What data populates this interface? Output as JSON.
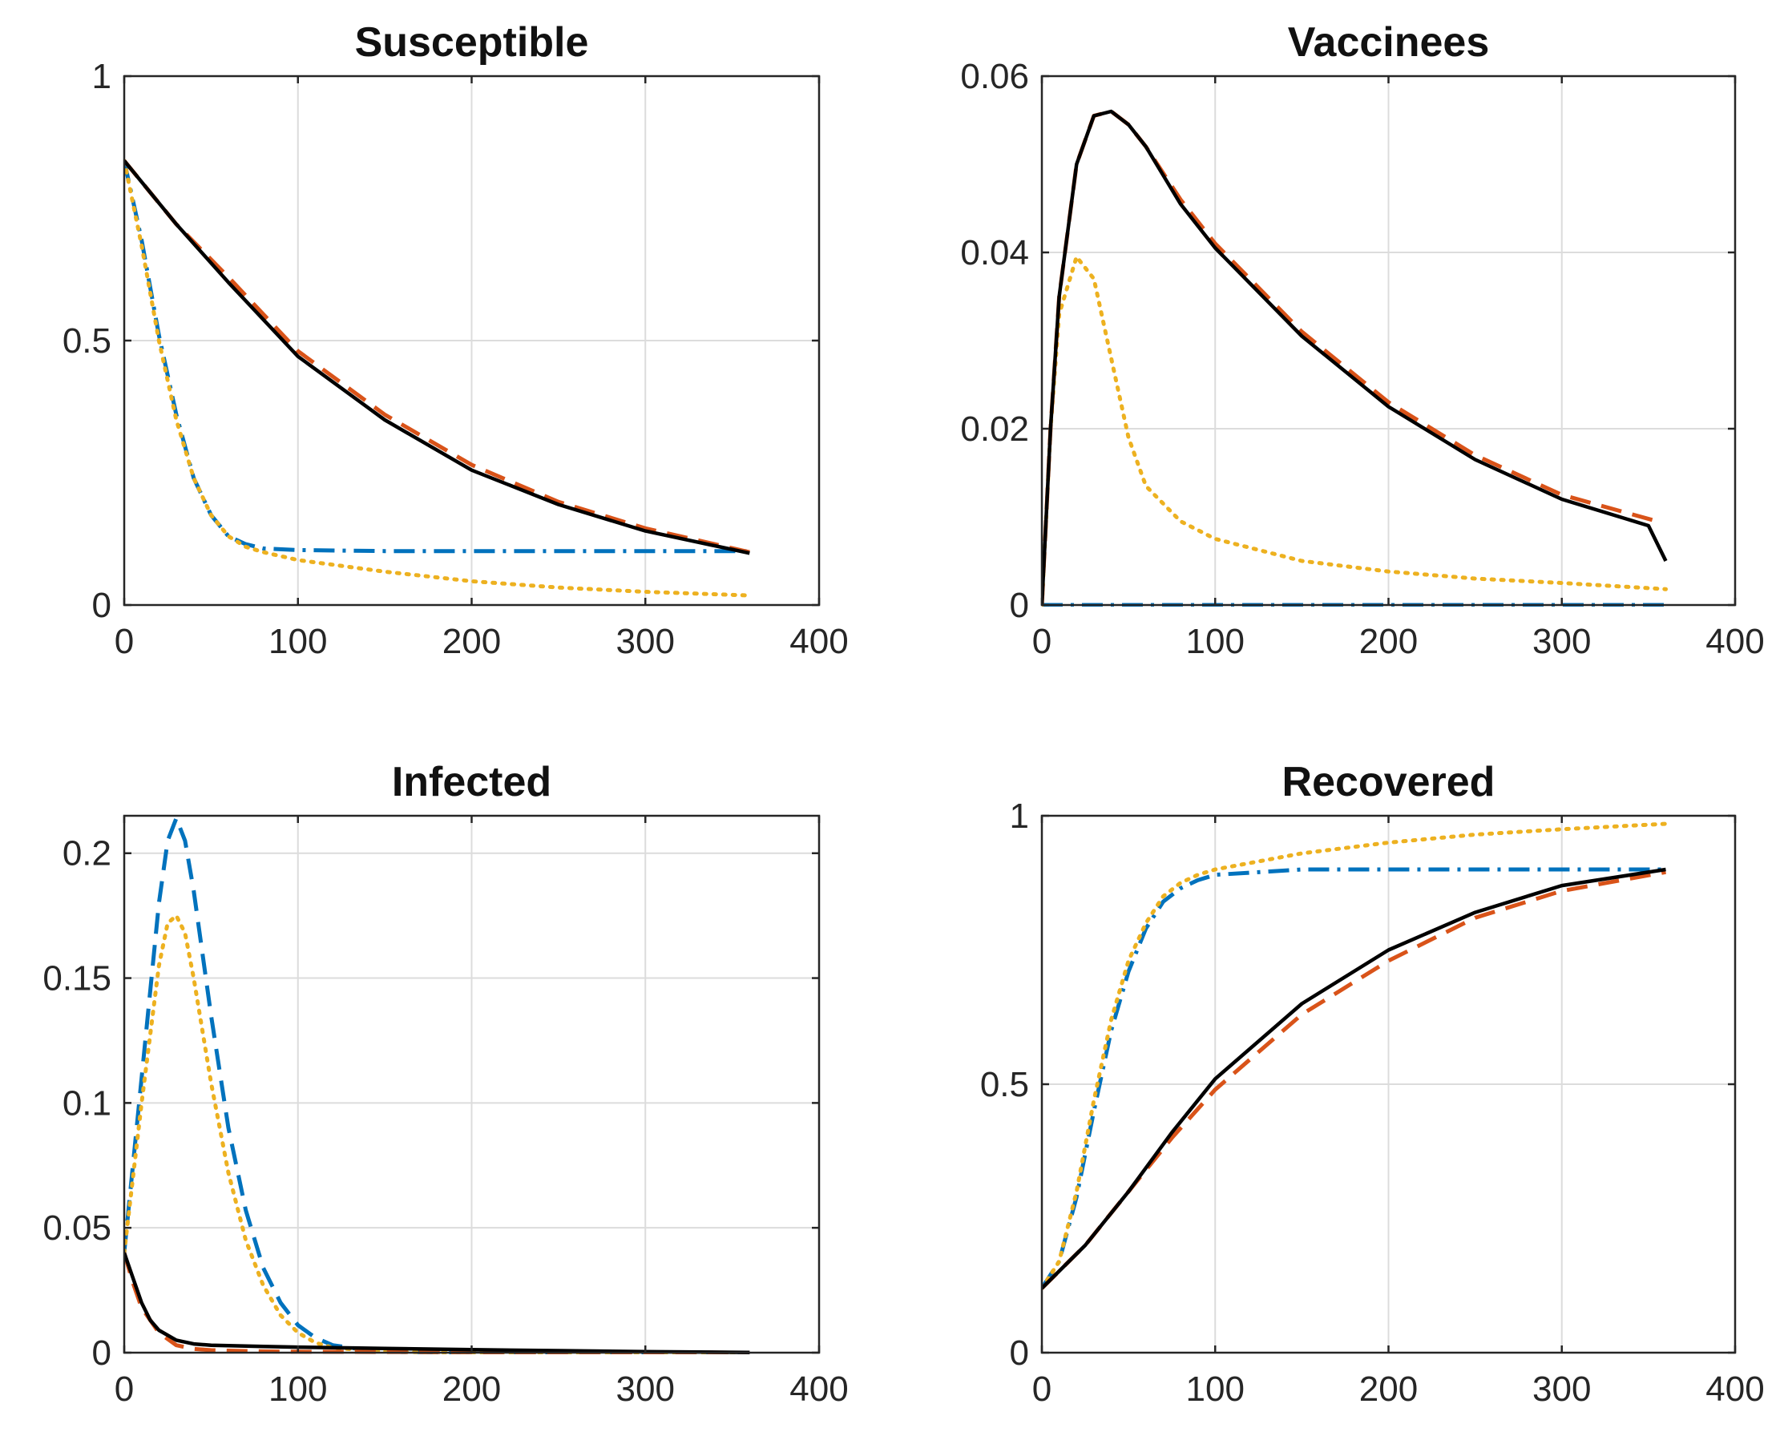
{
  "figure": {
    "colors": {
      "blue": "#0072BD",
      "red": "#D95319",
      "yellow": "#EDB120",
      "black": "#000000"
    }
  },
  "chart_data": [
    {
      "type": "line",
      "title": "Susceptible",
      "xlabel": "",
      "ylabel": "",
      "xlim": [
        0,
        400
      ],
      "ylim": [
        0,
        1
      ],
      "xticks": [
        0,
        100,
        200,
        300,
        400
      ],
      "yticks": [
        0,
        0.5,
        1
      ],
      "grid": true,
      "series": [
        {
          "name": "blue-dashdot",
          "color": "#0072BD",
          "style": "dashdot",
          "x": [
            0,
            10,
            20,
            30,
            40,
            50,
            60,
            70,
            80,
            100,
            150,
            200,
            250,
            300,
            360
          ],
          "y": [
            0.84,
            0.69,
            0.51,
            0.36,
            0.24,
            0.17,
            0.13,
            0.115,
            0.107,
            0.104,
            0.102,
            0.102,
            0.102,
            0.102,
            0.102
          ]
        },
        {
          "name": "yellow-dotted",
          "color": "#EDB120",
          "style": "dotted",
          "x": [
            0,
            10,
            20,
            30,
            40,
            50,
            60,
            70,
            80,
            100,
            150,
            200,
            250,
            300,
            360
          ],
          "y": [
            0.84,
            0.68,
            0.5,
            0.35,
            0.24,
            0.17,
            0.13,
            0.11,
            0.1,
            0.085,
            0.063,
            0.045,
            0.033,
            0.025,
            0.018
          ]
        },
        {
          "name": "red-dashed",
          "color": "#D95319",
          "style": "dashed",
          "x": [
            0,
            30,
            60,
            100,
            150,
            200,
            250,
            300,
            360
          ],
          "y": [
            0.84,
            0.72,
            0.62,
            0.48,
            0.36,
            0.265,
            0.195,
            0.145,
            0.1
          ]
        },
        {
          "name": "black-solid",
          "color": "#000000",
          "style": "solid",
          "x": [
            0,
            30,
            60,
            100,
            150,
            200,
            250,
            300,
            360
          ],
          "y": [
            0.84,
            0.72,
            0.61,
            0.47,
            0.35,
            0.255,
            0.19,
            0.14,
            0.098
          ]
        }
      ]
    },
    {
      "type": "line",
      "title": "Vaccinees",
      "xlabel": "",
      "ylabel": "",
      "xlim": [
        0,
        400
      ],
      "ylim": [
        0,
        0.06
      ],
      "xticks": [
        0,
        100,
        200,
        300,
        400
      ],
      "yticks": [
        0,
        0.02,
        0.04,
        0.06
      ],
      "grid": true,
      "series": [
        {
          "name": "blue-dashdot",
          "color": "#0072BD",
          "style": "dashdot",
          "x": [
            0,
            360
          ],
          "y": [
            0,
            0
          ]
        },
        {
          "name": "yellow-dotted",
          "color": "#EDB120",
          "style": "dotted",
          "x": [
            0,
            5,
            10,
            20,
            30,
            40,
            50,
            60,
            80,
            100,
            150,
            200,
            250,
            300,
            360
          ],
          "y": [
            0,
            0.02,
            0.033,
            0.0395,
            0.037,
            0.028,
            0.019,
            0.0135,
            0.0095,
            0.0075,
            0.005,
            0.0038,
            0.003,
            0.0025,
            0.0018
          ]
        },
        {
          "name": "red-dashed",
          "color": "#D95319",
          "style": "dashed",
          "x": [
            0,
            5,
            10,
            20,
            30,
            40,
            50,
            60,
            80,
            100,
            150,
            200,
            250,
            300,
            355
          ],
          "y": [
            0,
            0.02,
            0.035,
            0.05,
            0.0555,
            0.056,
            0.0545,
            0.052,
            0.046,
            0.041,
            0.031,
            0.023,
            0.017,
            0.0125,
            0.0095
          ]
        },
        {
          "name": "black-solid",
          "color": "#000000",
          "style": "solid",
          "x": [
            0,
            5,
            10,
            20,
            30,
            40,
            50,
            60,
            80,
            100,
            150,
            200,
            250,
            300,
            350,
            360
          ],
          "y": [
            0,
            0.02,
            0.035,
            0.05,
            0.0555,
            0.056,
            0.0545,
            0.052,
            0.0455,
            0.0405,
            0.0305,
            0.0225,
            0.0165,
            0.012,
            0.009,
            0.005
          ]
        }
      ]
    },
    {
      "type": "line",
      "title": "Infected",
      "xlabel": "",
      "ylabel": "",
      "xlim": [
        0,
        400
      ],
      "ylim": [
        0,
        0.215
      ],
      "xticks": [
        0,
        100,
        200,
        300,
        400
      ],
      "yticks": [
        0,
        0.05,
        0.1,
        0.15,
        0.2
      ],
      "grid": true,
      "series": [
        {
          "name": "blue-dashed",
          "color": "#0072BD",
          "style": "dashed",
          "x": [
            0,
            10,
            20,
            25,
            30,
            35,
            40,
            50,
            60,
            70,
            80,
            90,
            100,
            110,
            120,
            140,
            160,
            200,
            250,
            300,
            360
          ],
          "y": [
            0.04,
            0.11,
            0.18,
            0.205,
            0.214,
            0.205,
            0.185,
            0.135,
            0.09,
            0.057,
            0.034,
            0.02,
            0.011,
            0.006,
            0.003,
            0.001,
            0.0003,
            0,
            0,
            0,
            0
          ]
        },
        {
          "name": "yellow-dotted",
          "color": "#EDB120",
          "style": "dotted",
          "x": [
            0,
            10,
            20,
            25,
            30,
            35,
            40,
            50,
            60,
            70,
            80,
            90,
            100,
            110,
            120,
            140,
            160,
            200,
            250,
            300,
            360
          ],
          "y": [
            0.04,
            0.1,
            0.155,
            0.172,
            0.175,
            0.168,
            0.15,
            0.108,
            0.072,
            0.045,
            0.027,
            0.015,
            0.008,
            0.004,
            0.002,
            0.0008,
            0.0003,
            0,
            0,
            0,
            0
          ]
        },
        {
          "name": "red-dashed",
          "color": "#D95319",
          "style": "dashed",
          "x": [
            0,
            5,
            10,
            20,
            30,
            40,
            50,
            60,
            80,
            100,
            150,
            200,
            250,
            300,
            360
          ],
          "y": [
            0.04,
            0.028,
            0.018,
            0.008,
            0.003,
            0.0015,
            0.001,
            0.0008,
            0.0005,
            0.0004,
            0.0003,
            0.0002,
            0.0001,
            0.0001,
            0
          ]
        },
        {
          "name": "black-solid",
          "color": "#000000",
          "style": "solid",
          "x": [
            0,
            5,
            10,
            15,
            20,
            30,
            40,
            50,
            60,
            80,
            100,
            150,
            200,
            250,
            300,
            360
          ],
          "y": [
            0.04,
            0.03,
            0.02,
            0.013,
            0.009,
            0.005,
            0.0035,
            0.003,
            0.0028,
            0.0025,
            0.0022,
            0.0017,
            0.0012,
            0.0008,
            0.0004,
            0.0001
          ]
        }
      ]
    },
    {
      "type": "line",
      "title": "Recovered",
      "xlabel": "",
      "ylabel": "",
      "xlim": [
        0,
        400
      ],
      "ylim": [
        0,
        1
      ],
      "xticks": [
        0,
        100,
        200,
        300,
        400
      ],
      "yticks": [
        0,
        0.5,
        1
      ],
      "grid": true,
      "series": [
        {
          "name": "blue-dashdot",
          "color": "#0072BD",
          "style": "dashdot",
          "x": [
            0,
            10,
            20,
            30,
            40,
            50,
            60,
            70,
            80,
            90,
            100,
            150,
            200,
            250,
            300,
            360
          ],
          "y": [
            0.12,
            0.17,
            0.29,
            0.45,
            0.6,
            0.71,
            0.79,
            0.84,
            0.865,
            0.88,
            0.89,
            0.9,
            0.9,
            0.9,
            0.9,
            0.9
          ]
        },
        {
          "name": "yellow-dotted",
          "color": "#EDB120",
          "style": "dotted",
          "x": [
            0,
            10,
            20,
            30,
            40,
            50,
            60,
            70,
            80,
            90,
            100,
            150,
            200,
            250,
            300,
            360
          ],
          "y": [
            0.12,
            0.17,
            0.3,
            0.47,
            0.62,
            0.73,
            0.8,
            0.85,
            0.875,
            0.89,
            0.9,
            0.93,
            0.95,
            0.965,
            0.975,
            0.985
          ]
        },
        {
          "name": "red-dashed",
          "color": "#D95319",
          "style": "dashed",
          "x": [
            0,
            25,
            50,
            75,
            100,
            150,
            200,
            250,
            300,
            360
          ],
          "y": [
            0.12,
            0.2,
            0.3,
            0.4,
            0.49,
            0.63,
            0.73,
            0.81,
            0.86,
            0.895
          ]
        },
        {
          "name": "black-solid",
          "color": "#000000",
          "style": "solid",
          "x": [
            0,
            25,
            50,
            75,
            100,
            150,
            200,
            250,
            300,
            360
          ],
          "y": [
            0.12,
            0.2,
            0.3,
            0.41,
            0.51,
            0.65,
            0.75,
            0.82,
            0.87,
            0.9
          ]
        }
      ]
    }
  ]
}
